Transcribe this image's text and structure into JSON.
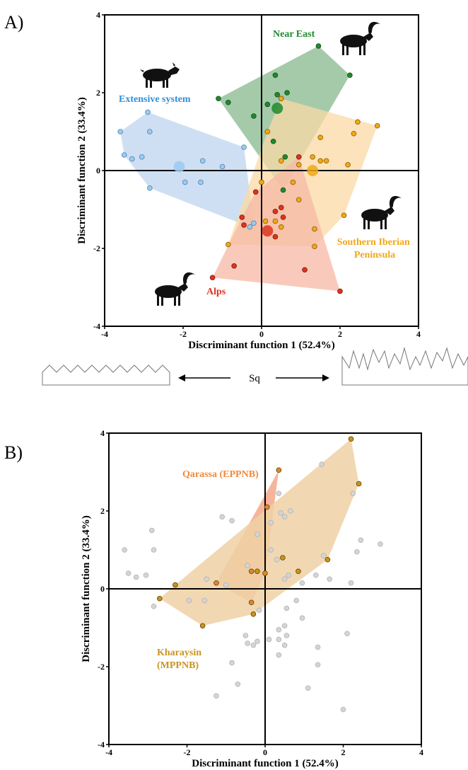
{
  "colors": {
    "extensive": "#5b9bd5",
    "extensive_fill": "#c7d9f1",
    "near_east": "#1f8a2e",
    "near_east_fill": "#7fb386",
    "southern_iberian": "#f0a818",
    "southern_iberian_fill": "#fbd9a6",
    "alps": "#dc3520",
    "alps_fill": "#f7b8a6",
    "kharaysin": "#c8941e",
    "kharaysin_fill": "#eed1a4",
    "qarassa": "#e8713a",
    "qarassa_fill": "#f5a88a",
    "grey": "#d5d5d5"
  },
  "sq": {
    "label": "Sq"
  },
  "icons": [
    "goat-icon",
    "ibex-icon",
    "ibex-icon",
    "ibex-icon"
  ],
  "chart_data": [
    {
      "panel": "A)",
      "type": "scatter",
      "xlabel": "Discriminant function 1 (52.4%)",
      "ylabel": "Discriminant function 2 (33.4%)",
      "xlim": [
        -4,
        4
      ],
      "ylim": [
        -4,
        4
      ],
      "xticks": [
        "-4",
        "-2",
        "0",
        "2",
        "4"
      ],
      "yticks": [
        "4",
        "2",
        "0",
        "-2",
        "-4"
      ],
      "grid": false,
      "series": [
        {
          "name": "Extensive system",
          "points": [
            [
              -3.6,
              1.0
            ],
            [
              -3.5,
              0.4
            ],
            [
              -3.3,
              0.3
            ],
            [
              -3.05,
              0.35
            ],
            [
              -2.9,
              1.5
            ],
            [
              -2.85,
              1.0
            ],
            [
              -2.85,
              -0.45
            ],
            [
              -1.95,
              -0.3
            ],
            [
              -1.55,
              -0.3
            ],
            [
              -1.5,
              0.25
            ],
            [
              -1.0,
              0.1
            ],
            [
              -0.45,
              0.6
            ],
            [
              -0.3,
              -1.45
            ],
            [
              -0.2,
              -1.35
            ]
          ],
          "centroid": [
            -2.1,
            0.1
          ]
        },
        {
          "name": "Near East",
          "points": [
            [
              -1.1,
              1.85
            ],
            [
              -0.85,
              1.75
            ],
            [
              -0.2,
              1.4
            ],
            [
              0.15,
              1.7
            ],
            [
              0.35,
              2.45
            ],
            [
              0.4,
              1.95
            ],
            [
              0.5,
              1.85
            ],
            [
              0.65,
              2.0
            ],
            [
              0.3,
              0.75
            ],
            [
              0.6,
              0.35
            ],
            [
              0.55,
              -0.5
            ],
            [
              1.45,
              3.2
            ],
            [
              2.25,
              2.45
            ]
          ],
          "centroid": [
            0.4,
            1.6
          ]
        },
        {
          "name": "Southern Iberian Peninsula",
          "points": [
            [
              0.15,
              1.0
            ],
            [
              0.5,
              1.85
            ],
            [
              0.5,
              0.25
            ],
            [
              0.8,
              -0.3
            ],
            [
              0.95,
              0.15
            ],
            [
              1.3,
              0.35
            ],
            [
              1.5,
              0.85
            ],
            [
              1.5,
              0.25
            ],
            [
              1.65,
              0.25
            ],
            [
              2.35,
              0.95
            ],
            [
              2.45,
              1.25
            ],
            [
              2.95,
              1.15
            ],
            [
              2.2,
              0.15
            ],
            [
              2.1,
              -1.15
            ],
            [
              1.35,
              -1.95
            ],
            [
              1.35,
              -1.5
            ],
            [
              0.5,
              -1.45
            ],
            [
              0.35,
              -1.3
            ],
            [
              0.1,
              -1.3
            ],
            [
              0.0,
              -0.3
            ],
            [
              0.95,
              -0.75
            ],
            [
              -0.85,
              -1.9
            ]
          ],
          "centroid": [
            1.3,
            0.0
          ]
        },
        {
          "name": "Alps",
          "points": [
            [
              -1.25,
              -2.75
            ],
            [
              -0.7,
              -2.45
            ],
            [
              -0.5,
              -1.2
            ],
            [
              -0.45,
              -1.4
            ],
            [
              -0.15,
              -0.55
            ],
            [
              0.35,
              -1.05
            ],
            [
              0.5,
              -0.95
            ],
            [
              0.55,
              -1.2
            ],
            [
              0.35,
              -1.7
            ],
            [
              0.95,
              0.35
            ],
            [
              1.1,
              -2.55
            ],
            [
              2.0,
              -3.1
            ]
          ],
          "centroid": [
            0.15,
            -1.55
          ]
        }
      ]
    },
    {
      "panel": "B)",
      "type": "scatter",
      "xlabel": "Discriminant function 1 (52.4%)",
      "ylabel": "Discriminant function 2 (33.4%)",
      "xlim": [
        -4,
        4
      ],
      "ylim": [
        -4,
        4
      ],
      "xticks": [
        "-4",
        "-2",
        "0",
        "2",
        "4"
      ],
      "yticks": [
        "4",
        "2",
        "0",
        "-2",
        "-4"
      ],
      "grid": false,
      "series": [
        {
          "name": "Qarassa (EPPNB)",
          "points": [
            [
              0.35,
              3.05
            ],
            [
              0.05,
              2.1
            ],
            [
              -0.35,
              0.45
            ],
            [
              -0.35,
              -0.35
            ],
            [
              0.0,
              0.4
            ],
            [
              -1.25,
              0.15
            ]
          ]
        },
        {
          "name": "Kharaysin (MPPNB)",
          "points": [
            [
              2.2,
              3.85
            ],
            [
              2.4,
              2.7
            ],
            [
              1.6,
              0.75
            ],
            [
              0.85,
              0.45
            ],
            [
              0.45,
              0.8
            ],
            [
              -0.2,
              0.45
            ],
            [
              -0.3,
              -0.65
            ],
            [
              -1.6,
              -0.95
            ],
            [
              -2.7,
              -0.25
            ],
            [
              -2.3,
              0.1
            ]
          ]
        },
        {
          "name": "",
          "points": [
            [
              -3.6,
              1.0
            ],
            [
              -3.5,
              0.4
            ],
            [
              -3.3,
              0.3
            ],
            [
              -3.05,
              0.35
            ],
            [
              -2.9,
              1.5
            ],
            [
              -2.85,
              1.0
            ],
            [
              -2.85,
              -0.45
            ],
            [
              -1.95,
              -0.3
            ],
            [
              -1.55,
              -0.3
            ],
            [
              -1.5,
              0.25
            ],
            [
              -1.0,
              0.1
            ],
            [
              -0.45,
              0.6
            ],
            [
              -0.3,
              -1.45
            ],
            [
              -0.2,
              -1.35
            ],
            [
              -1.1,
              1.85
            ],
            [
              -0.85,
              1.75
            ],
            [
              -0.2,
              1.4
            ],
            [
              0.15,
              1.7
            ],
            [
              0.35,
              2.45
            ],
            [
              0.4,
              1.95
            ],
            [
              0.5,
              1.85
            ],
            [
              0.65,
              2.0
            ],
            [
              0.3,
              0.75
            ],
            [
              0.6,
              0.35
            ],
            [
              0.55,
              -0.5
            ],
            [
              1.45,
              3.2
            ],
            [
              2.25,
              2.45
            ],
            [
              0.15,
              1.0
            ],
            [
              0.5,
              0.25
            ],
            [
              0.8,
              -0.3
            ],
            [
              0.95,
              0.15
            ],
            [
              1.3,
              0.35
            ],
            [
              1.5,
              0.85
            ],
            [
              1.65,
              0.25
            ],
            [
              2.35,
              0.95
            ],
            [
              2.45,
              1.25
            ],
            [
              2.95,
              1.15
            ],
            [
              2.2,
              0.15
            ],
            [
              2.1,
              -1.15
            ],
            [
              1.35,
              -1.95
            ],
            [
              1.35,
              -1.5
            ],
            [
              0.5,
              -1.45
            ],
            [
              0.35,
              -1.3
            ],
            [
              0.1,
              -1.3
            ],
            [
              0.95,
              -0.75
            ],
            [
              -0.85,
              -1.9
            ],
            [
              -1.25,
              -2.75
            ],
            [
              -0.7,
              -2.45
            ],
            [
              -0.5,
              -1.2
            ],
            [
              -0.45,
              -1.4
            ],
            [
              -0.15,
              -0.55
            ],
            [
              0.35,
              -1.05
            ],
            [
              0.5,
              -0.95
            ],
            [
              0.55,
              -1.2
            ],
            [
              0.35,
              -1.7
            ],
            [
              1.1,
              -2.55
            ],
            [
              2.0,
              -3.1
            ]
          ]
        }
      ]
    }
  ]
}
